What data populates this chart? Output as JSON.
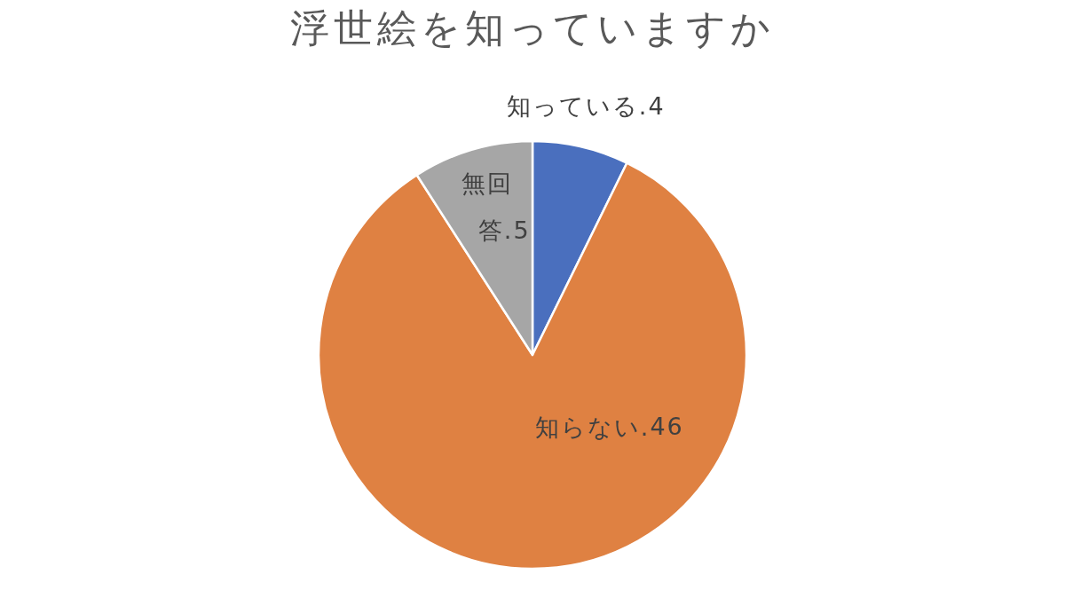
{
  "chart_data": {
    "type": "pie",
    "title": "浮世絵を知っていますか",
    "categories": [
      "知っている.",
      "知らない.",
      "無回答."
    ],
    "values": [
      4,
      46,
      5
    ],
    "data_labels": true,
    "colors": [
      "#4a6fbe",
      "#df8142",
      "#a6a6a6"
    ]
  }
}
